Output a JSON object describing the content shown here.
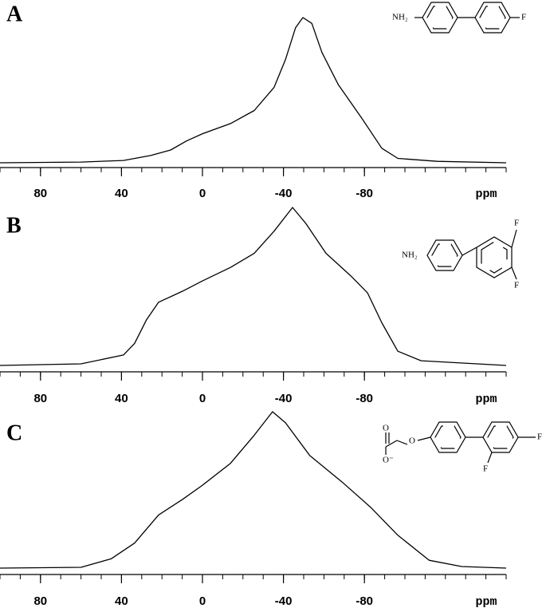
{
  "chart_data": [
    {
      "type": "line",
      "panel_label": "A",
      "xlabel": "ppm",
      "color": "#000000",
      "structure_labels": [
        "NH₂",
        "F"
      ],
      "x": [
        100,
        60,
        39,
        25.6,
        15.7,
        7.9,
        0,
        -13.8,
        -25.6,
        -35.4,
        -41,
        -46,
        -49.6,
        -54,
        -59,
        -67,
        -79,
        -88.6,
        -96.5,
        -116,
        -150
      ],
      "values": [
        0,
        0.5,
        1.6,
        5,
        8.8,
        15,
        20,
        27,
        36,
        52,
        71,
        93,
        100,
        96,
        76,
        54,
        30,
        10,
        3,
        1,
        0
      ],
      "xlim": [
        100,
        -150
      ],
      "ylim": [
        0,
        100
      ],
      "xticks": [
        80,
        40,
        0,
        -40,
        -80
      ],
      "xminorticks": [
        100,
        90,
        80,
        70,
        60,
        50,
        40,
        30,
        20,
        10,
        0,
        -10,
        -20,
        -30,
        -40,
        -50,
        -60,
        -70,
        -80,
        -90,
        -100,
        -110,
        -120,
        -130,
        -140,
        -150
      ]
    },
    {
      "type": "line",
      "panel_label": "B",
      "xlabel": "ppm",
      "color": "#000000",
      "structure_labels": [
        "NH₂",
        "F",
        "F"
      ],
      "x": [
        100,
        60,
        39,
        33.5,
        27.6,
        21.7,
        9.8,
        0,
        -13.8,
        -25.6,
        -35.4,
        -44.5,
        -51,
        -61,
        -73,
        -81.5,
        -88.6,
        -96.5,
        -108,
        -150
      ],
      "values": [
        0,
        1,
        6.6,
        14,
        29,
        40,
        47,
        53.5,
        62,
        71,
        85,
        100,
        90,
        71,
        57,
        46,
        27,
        9,
        3,
        0
      ],
      "xlim": [
        100,
        -150
      ],
      "ylim": [
        0,
        100
      ],
      "xticks": [
        80,
        40,
        0,
        -40,
        -80
      ],
      "xminorticks": [
        100,
        90,
        80,
        70,
        60,
        50,
        40,
        30,
        20,
        10,
        0,
        -10,
        -20,
        -30,
        -40,
        -50,
        -60,
        -70,
        -80,
        -90,
        -100,
        -110,
        -120,
        -130,
        -140,
        -150
      ]
    },
    {
      "type": "line",
      "panel_label": "C",
      "xlabel": "ppm",
      "color": "#000000",
      "structure_labels": [
        "O",
        "O⁻",
        "O",
        "F",
        "F"
      ],
      "x": [
        100,
        60,
        45,
        33.5,
        21.7,
        9.8,
        0,
        -13.8,
        -25.6,
        -34.6,
        -41,
        -53,
        -69,
        -83,
        -96.5,
        -112,
        -128,
        -150
      ],
      "values": [
        0,
        0.5,
        6,
        16,
        34,
        44,
        53,
        67,
        85,
        100,
        93,
        72,
        55,
        39,
        21,
        5,
        1,
        0
      ],
      "xlim": [
        100,
        -150
      ],
      "ylim": [
        0,
        100
      ],
      "xticks": [
        80,
        40,
        0,
        -40,
        -80
      ],
      "xminorticks": [
        100,
        90,
        80,
        70,
        60,
        50,
        40,
        30,
        20,
        10,
        0,
        -10,
        -20,
        -30,
        -40,
        -50,
        -60,
        -70,
        -80,
        -90,
        -100,
        -110,
        -120,
        -130,
        -140,
        -150
      ]
    }
  ]
}
